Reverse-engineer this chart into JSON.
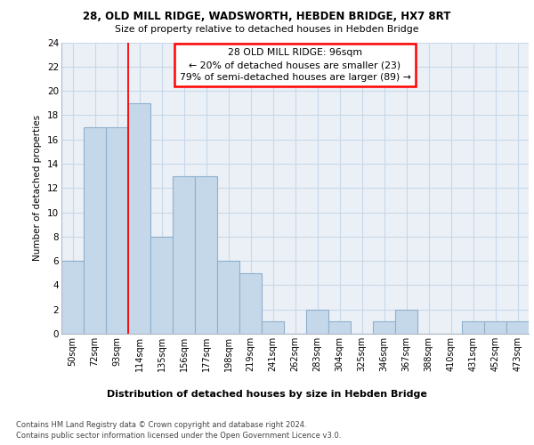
{
  "title1": "28, OLD MILL RIDGE, WADSWORTH, HEBDEN BRIDGE, HX7 8RT",
  "title2": "Size of property relative to detached houses in Hebden Bridge",
  "xlabel": "Distribution of detached houses by size in Hebden Bridge",
  "ylabel": "Number of detached properties",
  "categories": [
    "50sqm",
    "72sqm",
    "93sqm",
    "114sqm",
    "135sqm",
    "156sqm",
    "177sqm",
    "198sqm",
    "219sqm",
    "241sqm",
    "262sqm",
    "283sqm",
    "304sqm",
    "325sqm",
    "346sqm",
    "367sqm",
    "388sqm",
    "410sqm",
    "431sqm",
    "452sqm",
    "473sqm"
  ],
  "values": [
    6,
    17,
    17,
    19,
    8,
    13,
    13,
    6,
    5,
    1,
    0,
    2,
    1,
    0,
    1,
    2,
    0,
    0,
    1,
    1,
    1
  ],
  "bar_color": "#c5d8ea",
  "bar_edge_color": "#8fb0cc",
  "grid_color": "#c8d8e8",
  "red_line_index": 2,
  "annotation_box_text": "28 OLD MILL RIDGE: 96sqm\n← 20% of detached houses are smaller (23)\n79% of semi-detached houses are larger (89) →",
  "footer1": "Contains HM Land Registry data © Crown copyright and database right 2024.",
  "footer2": "Contains public sector information licensed under the Open Government Licence v3.0.",
  "ylim": [
    0,
    24
  ],
  "yticks": [
    0,
    2,
    4,
    6,
    8,
    10,
    12,
    14,
    16,
    18,
    20,
    22,
    24
  ],
  "background_color": "#eaf0f6",
  "fig_background": "#ffffff"
}
